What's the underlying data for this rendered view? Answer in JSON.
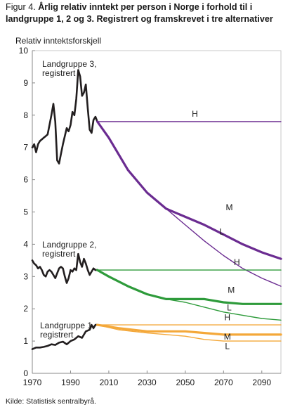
{
  "figure": {
    "title_prefix": "Figur 4.",
    "title": "Årlig relativ inntekt per person i Norge i forhold til i landgruppe 1, 2 og 3. Registrert og framskrevet i tre alternativer",
    "source": "Kilde: Statistisk sentralbyrå."
  },
  "colors": {
    "historical": "#231f20",
    "group3": "#6b2c91",
    "group2": "#2e9b3b",
    "group1": "#f4a83a",
    "frame": "#888888"
  },
  "chart_data": {
    "type": "line",
    "ylabel": "Relativ inntektsforskjell",
    "xlabel": "",
    "xlim": [
      1970,
      2100
    ],
    "ylim": [
      0,
      10
    ],
    "x_ticks": [
      1970,
      1990,
      2010,
      2030,
      2050,
      2070,
      2090
    ],
    "y_ticks": [
      0,
      1,
      2,
      3,
      4,
      5,
      6,
      7,
      8,
      9,
      10
    ],
    "annotations": {
      "group3": [
        "Landgruppe 3,",
        "registrert"
      ],
      "group2": [
        "Landgruppe 2,",
        "registrert"
      ],
      "group1": [
        "Landgruppe 1,",
        "registrert"
      ]
    },
    "series": [
      {
        "name": "Landgruppe 3, registrert",
        "group": "group3",
        "kind": "historical",
        "points": [
          [
            1970,
            7.0
          ],
          [
            1971,
            7.1
          ],
          [
            1972,
            6.85
          ],
          [
            1973,
            7.1
          ],
          [
            1974,
            7.2
          ],
          [
            1975,
            7.25
          ],
          [
            1976,
            7.3
          ],
          [
            1977,
            7.35
          ],
          [
            1978,
            7.4
          ],
          [
            1979,
            7.7
          ],
          [
            1980,
            8.0
          ],
          [
            1981,
            8.35
          ],
          [
            1982,
            7.8
          ],
          [
            1983,
            6.6
          ],
          [
            1984,
            6.5
          ],
          [
            1985,
            6.8
          ],
          [
            1986,
            7.1
          ],
          [
            1987,
            7.35
          ],
          [
            1988,
            7.6
          ],
          [
            1989,
            7.5
          ],
          [
            1990,
            7.7
          ],
          [
            1991,
            8.1
          ],
          [
            1992,
            8.0
          ],
          [
            1993,
            8.5
          ],
          [
            1994,
            9.4
          ],
          [
            1995,
            9.2
          ],
          [
            1996,
            8.6
          ],
          [
            1997,
            8.7
          ],
          [
            1998,
            8.95
          ],
          [
            1999,
            8.2
          ],
          [
            2000,
            7.55
          ],
          [
            2001,
            7.45
          ],
          [
            2002,
            7.85
          ],
          [
            2003,
            7.95
          ],
          [
            2004,
            7.8
          ]
        ]
      },
      {
        "name": "H",
        "group": "group3",
        "kind": "H",
        "points": [
          [
            2004,
            7.8
          ],
          [
            2100,
            7.8
          ]
        ]
      },
      {
        "name": "M",
        "group": "group3",
        "kind": "M",
        "points": [
          [
            2004,
            7.8
          ],
          [
            2010,
            7.3
          ],
          [
            2020,
            6.3
          ],
          [
            2030,
            5.6
          ],
          [
            2040,
            5.1
          ],
          [
            2050,
            4.85
          ],
          [
            2060,
            4.6
          ],
          [
            2070,
            4.3
          ],
          [
            2080,
            4.0
          ],
          [
            2090,
            3.75
          ],
          [
            2100,
            3.55
          ]
        ]
      },
      {
        "name": "L",
        "group": "group3",
        "kind": "L",
        "points": [
          [
            2004,
            7.8
          ],
          [
            2010,
            7.3
          ],
          [
            2020,
            6.3
          ],
          [
            2030,
            5.6
          ],
          [
            2040,
            5.1
          ],
          [
            2050,
            4.6
          ],
          [
            2060,
            4.1
          ],
          [
            2070,
            3.65
          ],
          [
            2080,
            3.25
          ],
          [
            2090,
            2.95
          ],
          [
            2100,
            2.7
          ]
        ]
      },
      {
        "name": "Landgruppe 2, registrert",
        "group": "group2",
        "kind": "historical",
        "points": [
          [
            1970,
            3.5
          ],
          [
            1971,
            3.4
          ],
          [
            1972,
            3.35
          ],
          [
            1973,
            3.25
          ],
          [
            1974,
            3.3
          ],
          [
            1975,
            3.2
          ],
          [
            1976,
            3.05
          ],
          [
            1977,
            3.0
          ],
          [
            1978,
            3.15
          ],
          [
            1979,
            3.2
          ],
          [
            1980,
            3.15
          ],
          [
            1981,
            3.05
          ],
          [
            1982,
            2.95
          ],
          [
            1983,
            3.1
          ],
          [
            1984,
            3.25
          ],
          [
            1985,
            3.3
          ],
          [
            1986,
            3.25
          ],
          [
            1987,
            3.0
          ],
          [
            1988,
            2.8
          ],
          [
            1989,
            2.95
          ],
          [
            1990,
            3.2
          ],
          [
            1991,
            3.15
          ],
          [
            1992,
            3.25
          ],
          [
            1993,
            3.2
          ],
          [
            1994,
            3.7
          ],
          [
            1995,
            3.45
          ],
          [
            1996,
            3.3
          ],
          [
            1997,
            3.55
          ],
          [
            1998,
            3.4
          ],
          [
            1999,
            3.2
          ],
          [
            2000,
            3.05
          ],
          [
            2001,
            3.15
          ],
          [
            2002,
            3.25
          ],
          [
            2003,
            3.2
          ],
          [
            2004,
            3.2
          ]
        ]
      },
      {
        "name": "H",
        "group": "group2",
        "kind": "H",
        "points": [
          [
            2004,
            3.2
          ],
          [
            2100,
            3.2
          ]
        ]
      },
      {
        "name": "M",
        "group": "group2",
        "kind": "M",
        "points": [
          [
            2004,
            3.2
          ],
          [
            2010,
            3.0
          ],
          [
            2020,
            2.7
          ],
          [
            2030,
            2.45
          ],
          [
            2040,
            2.3
          ],
          [
            2050,
            2.3
          ],
          [
            2060,
            2.3
          ],
          [
            2070,
            2.2
          ],
          [
            2080,
            2.15
          ],
          [
            2090,
            2.15
          ],
          [
            2100,
            2.15
          ]
        ]
      },
      {
        "name": "L",
        "group": "group2",
        "kind": "L",
        "points": [
          [
            2004,
            3.2
          ],
          [
            2010,
            3.0
          ],
          [
            2020,
            2.7
          ],
          [
            2030,
            2.45
          ],
          [
            2040,
            2.3
          ],
          [
            2050,
            2.2
          ],
          [
            2060,
            2.05
          ],
          [
            2070,
            1.9
          ],
          [
            2080,
            1.8
          ],
          [
            2090,
            1.7
          ],
          [
            2100,
            1.65
          ]
        ]
      },
      {
        "name": "Landgruppe 1, registrert",
        "group": "group1",
        "kind": "historical",
        "points": [
          [
            1970,
            0.75
          ],
          [
            1972,
            0.8
          ],
          [
            1974,
            0.8
          ],
          [
            1976,
            0.82
          ],
          [
            1978,
            0.85
          ],
          [
            1980,
            0.9
          ],
          [
            1982,
            0.88
          ],
          [
            1984,
            0.95
          ],
          [
            1986,
            0.98
          ],
          [
            1988,
            0.9
          ],
          [
            1990,
            1.0
          ],
          [
            1992,
            1.05
          ],
          [
            1994,
            1.15
          ],
          [
            1996,
            1.1
          ],
          [
            1998,
            1.3
          ],
          [
            2000,
            1.35
          ],
          [
            2001,
            1.5
          ],
          [
            2002,
            1.4
          ],
          [
            2003,
            1.5
          ],
          [
            2004,
            1.5
          ]
        ]
      },
      {
        "name": "H",
        "group": "group1",
        "kind": "H",
        "points": [
          [
            2004,
            1.5
          ],
          [
            2100,
            1.5
          ]
        ]
      },
      {
        "name": "M",
        "group": "group1",
        "kind": "M",
        "points": [
          [
            2004,
            1.5
          ],
          [
            2015,
            1.4
          ],
          [
            2030,
            1.3
          ],
          [
            2050,
            1.3
          ],
          [
            2060,
            1.25
          ],
          [
            2070,
            1.2
          ],
          [
            2080,
            1.2
          ],
          [
            2100,
            1.2
          ]
        ]
      },
      {
        "name": "L",
        "group": "group1",
        "kind": "L",
        "points": [
          [
            2004,
            1.5
          ],
          [
            2015,
            1.35
          ],
          [
            2030,
            1.25
          ],
          [
            2050,
            1.15
          ],
          [
            2060,
            1.05
          ],
          [
            2070,
            1.0
          ],
          [
            2080,
            1.0
          ],
          [
            2100,
            1.0
          ]
        ]
      }
    ],
    "series_labels": [
      {
        "text": "H",
        "x": 2055,
        "y": 7.95
      },
      {
        "text": "M",
        "x": 2073,
        "y": 5.05
      },
      {
        "text": "L",
        "x": 2069,
        "y": 4.3
      },
      {
        "text": "H",
        "x": 2077,
        "y": 3.35
      },
      {
        "text": "M",
        "x": 2074,
        "y": 2.5
      },
      {
        "text": "L",
        "x": 2073,
        "y": 1.95
      },
      {
        "text": "H",
        "x": 2072,
        "y": 1.65
      },
      {
        "text": "M",
        "x": 2072,
        "y": 1.05
      },
      {
        "text": "L",
        "x": 2072,
        "y": 0.75
      }
    ]
  }
}
